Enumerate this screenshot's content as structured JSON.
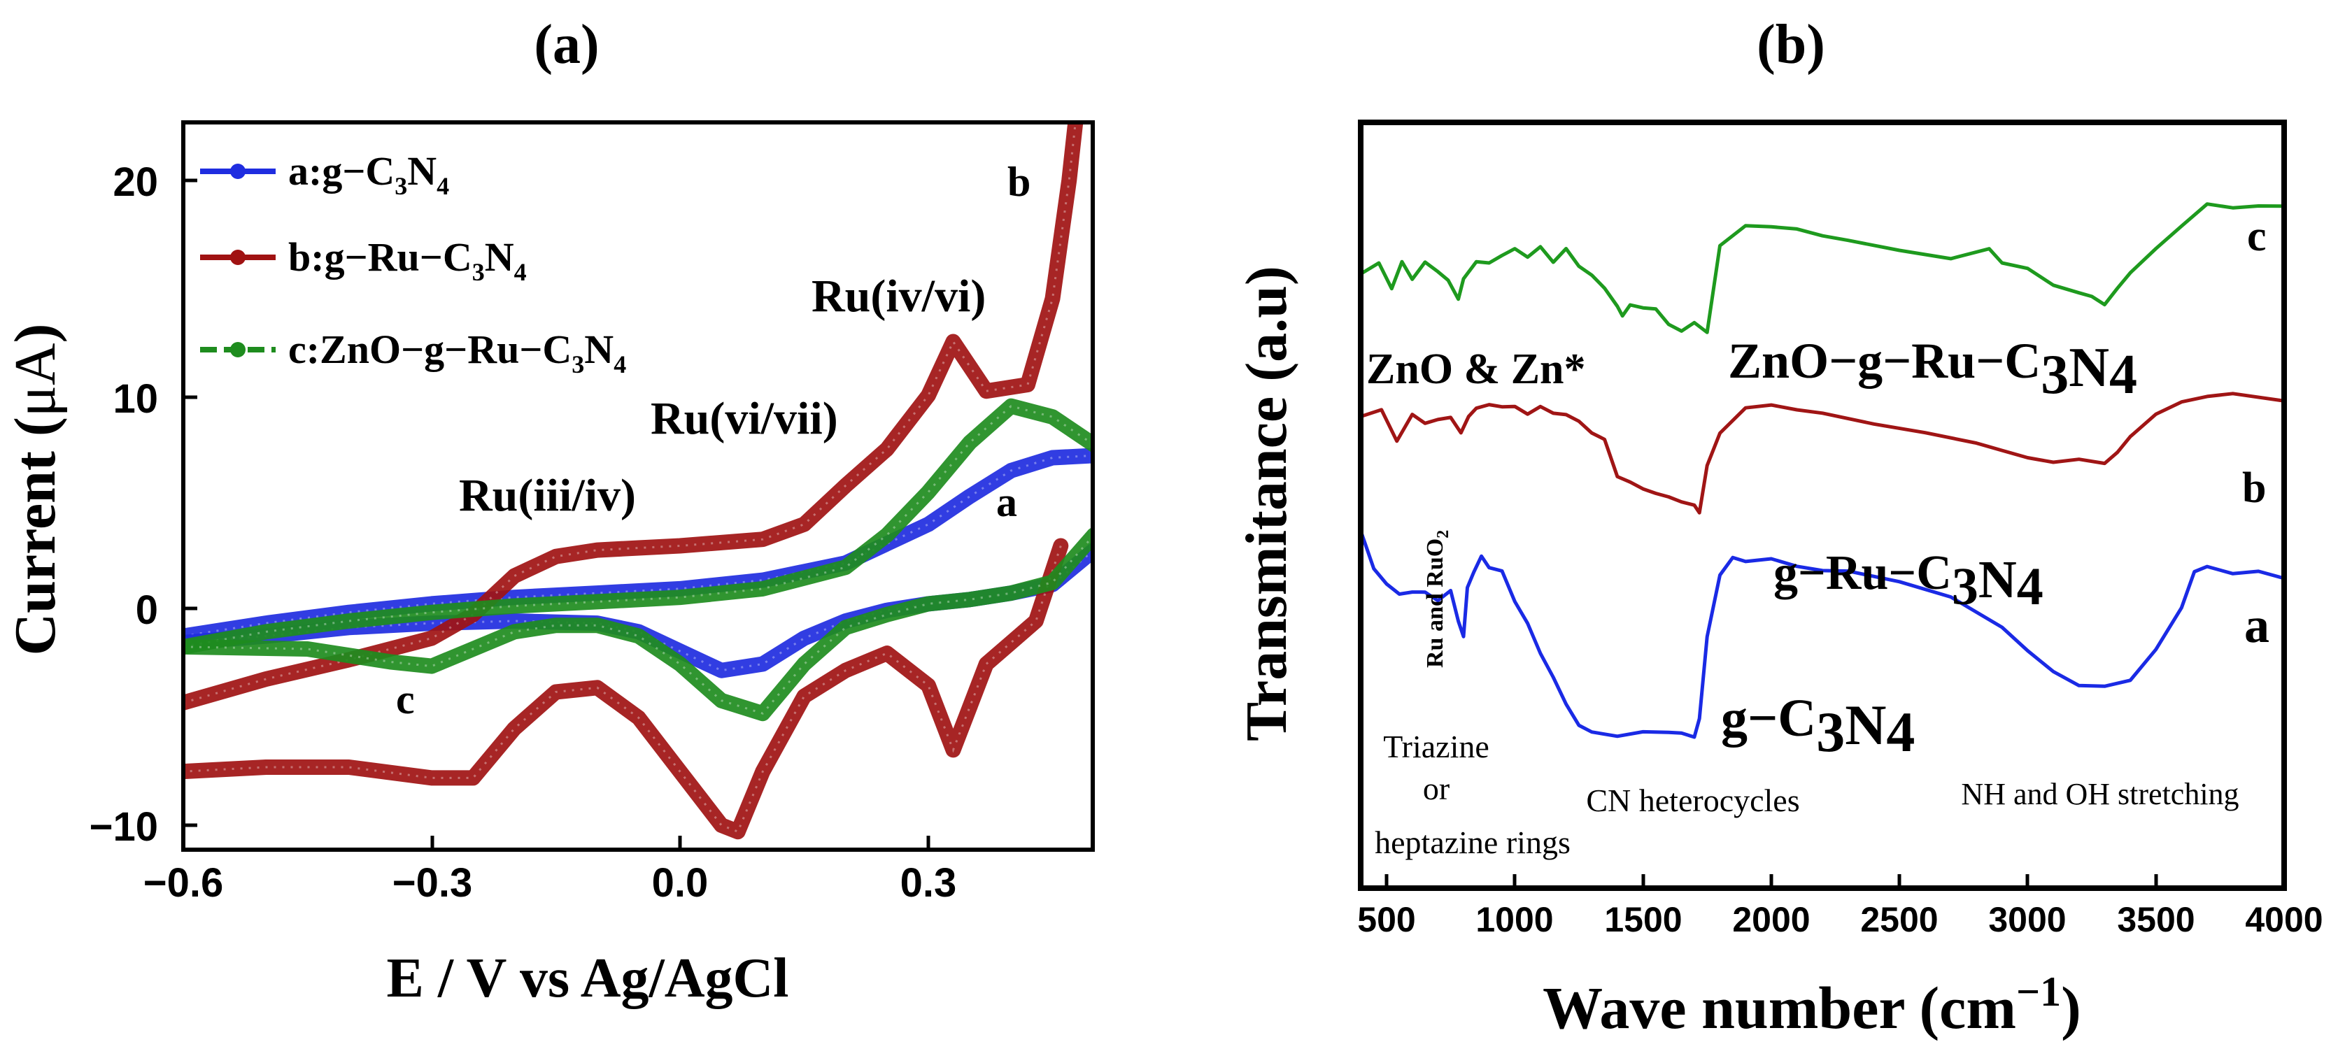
{
  "panel_a": {
    "label": "(a)",
    "xlabel": "E / V vs Ag/AgCl",
    "ylabel_main": "Current (",
    "ylabel_unit": "μA",
    "ylabel_close": ")",
    "xticks": [
      "−0.6",
      "−0.3",
      "0.0",
      "0.3"
    ],
    "yticks": [
      "20",
      "10",
      "0",
      "−10"
    ],
    "legend": [
      {
        "prefix": "a:g−C",
        "sub1": "3",
        "mid": "N",
        "sub2": "4",
        "color": "#1f2de0"
      },
      {
        "prefix": "b:g−Ru−C",
        "sub1": "3",
        "mid": "N",
        "sub2": "4",
        "color": "#a01212"
      },
      {
        "prefix": "c:ZnO−g−Ru−C",
        "sub1": "3",
        "mid": "N",
        "sub2": "4",
        "color": "#1e8c1e"
      }
    ],
    "annotations": {
      "ru_iv_vi": "Ru(iv/vi)",
      "ru_vi_vii": "Ru(vi/vii)",
      "ru_iii_iv": "Ru(iii/iv)",
      "label_a": "a",
      "label_b": "b",
      "label_c": "c"
    }
  },
  "panel_b": {
    "label": "(b)",
    "xlabel_main": "Wave number (cm",
    "xlabel_sup": "−1",
    "xlabel_close": ")",
    "ylabel": "Transmitance (a.u)",
    "xticks": [
      "500",
      "1000",
      "1500",
      "2000",
      "2500",
      "3000",
      "3500",
      "4000"
    ],
    "annotations": {
      "zno_zn": "ZnO & Zn*",
      "zno_g_ru_prefix": "ZnO−g−Ru−C",
      "zno_g_ru_sub1": "3",
      "zno_g_ru_mid": "N",
      "zno_g_ru_sub2": "4",
      "g_ru_prefix": "g−Ru−C",
      "g_ru_sub1": "3",
      "g_ru_mid": "N",
      "g_ru_sub2": "4",
      "g_prefix": "g−C",
      "g_sub1": "3",
      "g_mid": "N",
      "g_sub2": "4",
      "ru_ruo_prefix": "Ru and RuO",
      "ru_ruo_sub": "2",
      "triazine_1": "Triazine",
      "triazine_2": "or",
      "triazine_3": "heptazine rings",
      "cn_het": "CN heterocycles",
      "nh_oh": "NH and OH stretching",
      "label_a": "a",
      "label_b": "b",
      "label_c": "c"
    }
  },
  "chart_data": [
    {
      "type": "line",
      "title": "(a)",
      "xlabel": "E / V vs Ag/AgCl",
      "ylabel": "Current (μA)",
      "xlim": [
        -0.6,
        0.5
      ],
      "ylim": [
        -11.5,
        23.5
      ],
      "series": [
        {
          "name": "a:g−C3N4",
          "color": "#1f2de0",
          "forward": {
            "x": [
              -0.6,
              -0.5,
              -0.4,
              -0.3,
              -0.2,
              -0.1,
              0.0,
              0.1,
              0.2,
              0.3,
              0.35,
              0.4,
              0.45,
              0.5
            ],
            "y": [
              -1.2,
              -0.6,
              -0.1,
              0.3,
              0.6,
              0.8,
              1.0,
              1.4,
              2.2,
              4.0,
              5.3,
              6.5,
              7.1,
              7.2
            ]
          },
          "reverse": {
            "x": [
              0.5,
              0.45,
              0.4,
              0.35,
              0.3,
              0.25,
              0.2,
              0.15,
              0.1,
              0.05,
              0.0,
              -0.05,
              -0.1,
              -0.2,
              -0.3,
              -0.4,
              -0.5,
              -0.6
            ],
            "y": [
              2.8,
              1.2,
              0.8,
              0.5,
              0.3,
              0.0,
              -0.5,
              -1.3,
              -2.5,
              -2.8,
              -1.9,
              -1.0,
              -0.6,
              -0.5,
              -0.6,
              -0.8,
              -1.2,
              -1.5
            ]
          }
        },
        {
          "name": "b:g−Ru−C3N4",
          "color": "#a01212",
          "forward": {
            "x": [
              -0.6,
              -0.5,
              -0.4,
              -0.3,
              -0.25,
              -0.2,
              -0.15,
              -0.1,
              -0.05,
              0.0,
              0.1,
              0.15,
              0.2,
              0.25,
              0.3,
              0.33,
              0.37,
              0.42,
              0.45,
              0.47,
              0.48
            ],
            "y": [
              -4.3,
              -3.2,
              -2.3,
              -1.3,
              -0.2,
              1.6,
              2.5,
              2.8,
              2.9,
              3.0,
              3.3,
              4.0,
              5.8,
              7.5,
              10.0,
              12.5,
              10.2,
              10.5,
              14.5,
              20.0,
              23.5
            ]
          },
          "reverse": {
            "x": [
              0.46,
              0.43,
              0.4,
              0.37,
              0.35,
              0.33,
              0.3,
              0.25,
              0.2,
              0.15,
              0.1,
              0.07,
              0.05,
              0.0,
              -0.05,
              -0.1,
              -0.15,
              -0.2,
              -0.25,
              -0.3,
              -0.4,
              -0.5,
              -0.6
            ],
            "y": [
              3.0,
              -0.5,
              -1.5,
              -2.5,
              -4.5,
              -6.5,
              -3.5,
              -2.0,
              -2.8,
              -4.0,
              -7.5,
              -10.3,
              -10.0,
              -7.5,
              -5.0,
              -3.6,
              -3.8,
              -5.5,
              -7.8,
              -7.8,
              -7.3,
              -7.3,
              -7.5
            ]
          }
        },
        {
          "name": "c:ZnO−g−Ru−C3N4",
          "color": "#1e8c1e",
          "forward": {
            "x": [
              -0.6,
              -0.5,
              -0.4,
              -0.3,
              -0.2,
              -0.1,
              0.0,
              0.1,
              0.2,
              0.25,
              0.3,
              0.35,
              0.4,
              0.45,
              0.5
            ],
            "y": [
              -1.7,
              -1.0,
              -0.5,
              -0.1,
              0.2,
              0.4,
              0.6,
              1.0,
              2.0,
              3.5,
              5.5,
              7.8,
              9.5,
              9.0,
              7.7
            ]
          },
          "reverse": {
            "x": [
              0.5,
              0.45,
              0.4,
              0.35,
              0.3,
              0.25,
              0.2,
              0.15,
              0.1,
              0.05,
              0.0,
              -0.05,
              -0.1,
              -0.15,
              -0.2,
              -0.25,
              -0.3,
              -0.35,
              -0.45,
              -0.6
            ],
            "y": [
              3.5,
              1.3,
              0.8,
              0.5,
              0.3,
              -0.2,
              -0.8,
              -2.5,
              -4.8,
              -4.2,
              -2.5,
              -1.2,
              -0.7,
              -0.7,
              -1.0,
              -1.8,
              -2.6,
              -2.4,
              -1.8,
              -1.7
            ]
          }
        }
      ],
      "annotations": [
        "Ru(iv/vi)",
        "Ru(vi/vii)",
        "Ru(iii/iv)",
        "a",
        "b",
        "c"
      ]
    },
    {
      "type": "line",
      "title": "(b)",
      "xlabel": "Wave number (cm−1)",
      "ylabel": "Transmitance (a.u)",
      "xlim": [
        400,
        4000
      ],
      "ylim": [
        0,
        100
      ],
      "series": [
        {
          "name": "c: ZnO−g−Ru−C3N4",
          "color": "#1e9a1e",
          "x": [
            400,
            470,
            520,
            560,
            600,
            650,
            700,
            740,
            780,
            800,
            850,
            900,
            950,
            1000,
            1050,
            1100,
            1150,
            1200,
            1250,
            1300,
            1350,
            1400,
            1420,
            1450,
            1500,
            1550,
            1600,
            1650,
            1700,
            1750,
            1800,
            1900,
            2000,
            2100,
            2200,
            2300,
            2500,
            2700,
            2850,
            2900,
            3000,
            3100,
            3200,
            3250,
            3300,
            3350,
            3400,
            3500,
            3600,
            3700,
            3800,
            3900,
            4000
          ],
          "y": [
            77.5,
            79.0,
            75.5,
            79.0,
            77.0,
            79.0,
            78.0,
            76.5,
            73.5,
            77.0,
            79.0,
            79.5,
            80.0,
            81.5,
            80.0,
            81.5,
            79.5,
            81.0,
            79.0,
            77.0,
            75.5,
            72.5,
            71.0,
            73.0,
            72.0,
            72.5,
            69.5,
            69.0,
            70.0,
            68.5,
            82.0,
            84.5,
            85.0,
            84.0,
            83.5,
            82.5,
            81.0,
            80.0,
            81.0,
            79.5,
            78.0,
            76.0,
            74.5,
            74.0,
            73.0,
            75.0,
            78.0,
            81.0,
            85.0,
            88.0,
            87.5,
            88.0,
            87.5
          ]
        },
        {
          "name": "b: g−Ru−C3N4",
          "color": "#a01515",
          "x": [
            400,
            480,
            540,
            600,
            650,
            700,
            750,
            790,
            820,
            850,
            900,
            950,
            1000,
            1050,
            1100,
            1150,
            1200,
            1250,
            1300,
            1350,
            1400,
            1450,
            1500,
            1550,
            1600,
            1650,
            1700,
            1720,
            1750,
            1800,
            1900,
            2000,
            2100,
            2200,
            2400,
            2600,
            2800,
            2900,
            3000,
            3100,
            3200,
            3300,
            3350,
            3400,
            3500,
            3600,
            3700,
            3800,
            4000
          ],
          "y": [
            55.5,
            57.0,
            52.0,
            56.0,
            55.0,
            55.0,
            56.0,
            53.0,
            56.0,
            57.0,
            57.5,
            57.5,
            57.0,
            56.5,
            57.0,
            56.5,
            56.0,
            55.0,
            53.5,
            52.0,
            47.0,
            45.5,
            45.0,
            44.0,
            43.5,
            43.0,
            42.0,
            41.5,
            48.0,
            53.5,
            57.0,
            57.5,
            57.0,
            56.0,
            55.0,
            53.0,
            52.0,
            50.5,
            49.5,
            49.0,
            49.0,
            49.0,
            50.0,
            53.0,
            56.0,
            58.0,
            59.0,
            59.0,
            58.5
          ]
        },
        {
          "name": "a: g−C3N4",
          "color": "#1a2ae5",
          "x": [
            400,
            450,
            500,
            550,
            600,
            650,
            700,
            750,
            780,
            800,
            815,
            840,
            870,
            900,
            950,
            1000,
            1050,
            1100,
            1150,
            1200,
            1250,
            1300,
            1400,
            1500,
            1600,
            1650,
            1700,
            1720,
            1750,
            1800,
            1850,
            1900,
            2000,
            2100,
            2200,
            2300,
            2500,
            2700,
            2900,
            3000,
            3100,
            3200,
            3300,
            3400,
            3500,
            3600,
            3650,
            3700,
            3800,
            3900,
            4000
          ],
          "y": [
            38.0,
            33.0,
            30.0,
            29.0,
            29.0,
            29.0,
            28.0,
            29.0,
            25.0,
            22.0,
            30.0,
            32.0,
            34.5,
            33.0,
            32.0,
            28.0,
            24.0,
            20.0,
            16.0,
            12.0,
            9.0,
            7.5,
            7.5,
            7.5,
            8.0,
            7.5,
            7.0,
            10.0,
            22.0,
            32.0,
            34.0,
            34.0,
            34.0,
            33.0,
            32.5,
            32.0,
            31.0,
            28.0,
            24.0,
            20.0,
            17.0,
            15.0,
            14.5,
            16.0,
            20.0,
            27.0,
            32.0,
            33.0,
            32.0,
            32.0,
            31.5
          ]
        }
      ],
      "annotations": [
        "ZnO & Zn*",
        "ZnO−g−Ru−C3N4",
        "g−Ru−C3N4",
        "g−C3N4",
        "Ru and RuO2",
        "Triazine or heptazine rings",
        "CN heterocycles",
        "NH and OH stretching",
        "a",
        "b",
        "c"
      ]
    }
  ]
}
